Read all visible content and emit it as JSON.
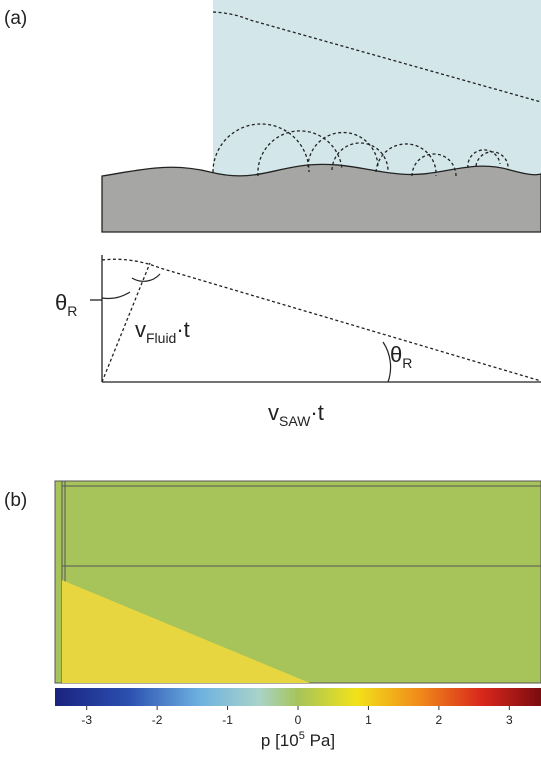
{
  "panel_a": {
    "label": "(a)",
    "angle_left": {
      "symbol": "θ",
      "subscript": "R"
    },
    "fluid_speed": {
      "symbol": "v",
      "subscript": "Fluid",
      "suffix": "·t"
    },
    "angle_right": {
      "symbol": "θ",
      "subscript": "R"
    },
    "saw_speed": {
      "symbol": "v",
      "subscript": "SAW",
      "suffix": "·t"
    }
  },
  "panel_b": {
    "label": "(b)",
    "colorbar": {
      "clim": [
        -3.45,
        3.45
      ],
      "ticks": [
        -3,
        -2,
        -1,
        0,
        1,
        2,
        3
      ],
      "label_parts": [
        "p [10",
        "5",
        " Pa]"
      ]
    }
  }
}
